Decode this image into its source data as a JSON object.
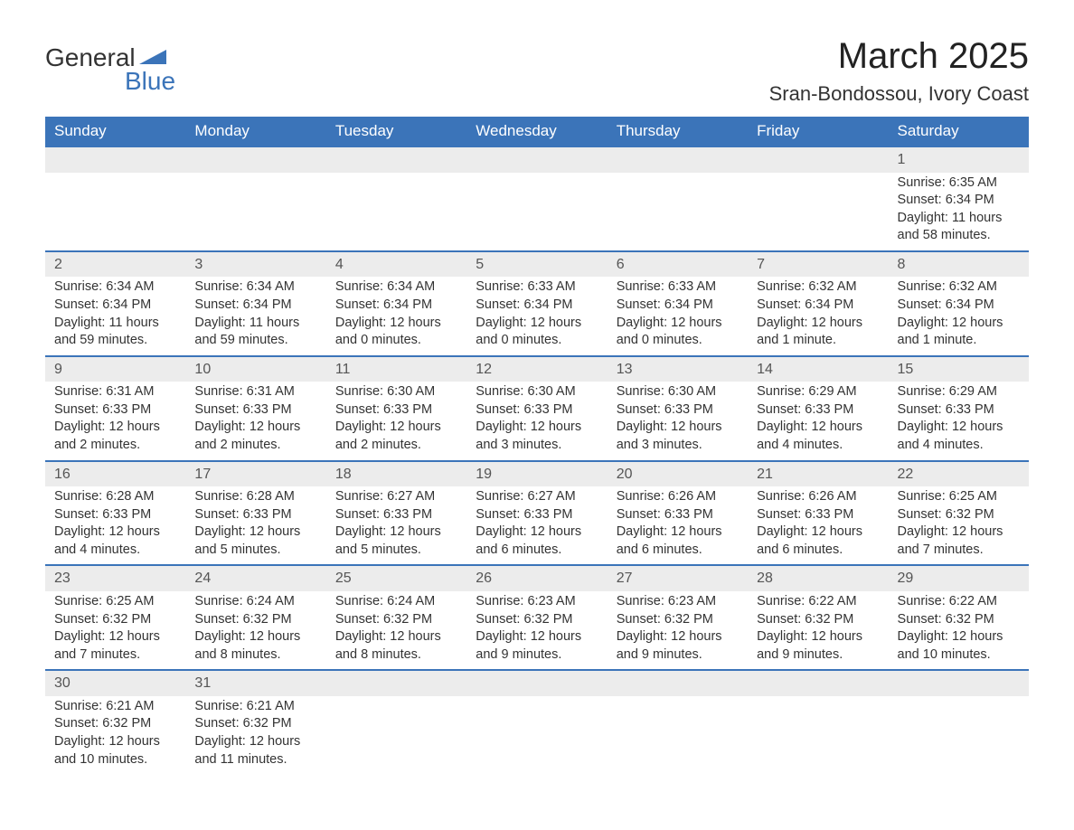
{
  "logo": {
    "text1": "General",
    "text2": "Blue",
    "triangle_color": "#3b74b9"
  },
  "title": "March 2025",
  "location": "Sran-Bondossou, Ivory Coast",
  "colors": {
    "header_bg": "#3b74b9",
    "header_fg": "#ffffff",
    "row_divider": "#3b74b9",
    "daynum_bg": "#ececec",
    "text": "#333333"
  },
  "weekdays": [
    "Sunday",
    "Monday",
    "Tuesday",
    "Wednesday",
    "Thursday",
    "Friday",
    "Saturday"
  ],
  "weeks": [
    [
      null,
      null,
      null,
      null,
      null,
      null,
      {
        "n": "1",
        "sr": "Sunrise: 6:35 AM",
        "ss": "Sunset: 6:34 PM",
        "dl": "Daylight: 11 hours and 58 minutes."
      }
    ],
    [
      {
        "n": "2",
        "sr": "Sunrise: 6:34 AM",
        "ss": "Sunset: 6:34 PM",
        "dl": "Daylight: 11 hours and 59 minutes."
      },
      {
        "n": "3",
        "sr": "Sunrise: 6:34 AM",
        "ss": "Sunset: 6:34 PM",
        "dl": "Daylight: 11 hours and 59 minutes."
      },
      {
        "n": "4",
        "sr": "Sunrise: 6:34 AM",
        "ss": "Sunset: 6:34 PM",
        "dl": "Daylight: 12 hours and 0 minutes."
      },
      {
        "n": "5",
        "sr": "Sunrise: 6:33 AM",
        "ss": "Sunset: 6:34 PM",
        "dl": "Daylight: 12 hours and 0 minutes."
      },
      {
        "n": "6",
        "sr": "Sunrise: 6:33 AM",
        "ss": "Sunset: 6:34 PM",
        "dl": "Daylight: 12 hours and 0 minutes."
      },
      {
        "n": "7",
        "sr": "Sunrise: 6:32 AM",
        "ss": "Sunset: 6:34 PM",
        "dl": "Daylight: 12 hours and 1 minute."
      },
      {
        "n": "8",
        "sr": "Sunrise: 6:32 AM",
        "ss": "Sunset: 6:34 PM",
        "dl": "Daylight: 12 hours and 1 minute."
      }
    ],
    [
      {
        "n": "9",
        "sr": "Sunrise: 6:31 AM",
        "ss": "Sunset: 6:33 PM",
        "dl": "Daylight: 12 hours and 2 minutes."
      },
      {
        "n": "10",
        "sr": "Sunrise: 6:31 AM",
        "ss": "Sunset: 6:33 PM",
        "dl": "Daylight: 12 hours and 2 minutes."
      },
      {
        "n": "11",
        "sr": "Sunrise: 6:30 AM",
        "ss": "Sunset: 6:33 PM",
        "dl": "Daylight: 12 hours and 2 minutes."
      },
      {
        "n": "12",
        "sr": "Sunrise: 6:30 AM",
        "ss": "Sunset: 6:33 PM",
        "dl": "Daylight: 12 hours and 3 minutes."
      },
      {
        "n": "13",
        "sr": "Sunrise: 6:30 AM",
        "ss": "Sunset: 6:33 PM",
        "dl": "Daylight: 12 hours and 3 minutes."
      },
      {
        "n": "14",
        "sr": "Sunrise: 6:29 AM",
        "ss": "Sunset: 6:33 PM",
        "dl": "Daylight: 12 hours and 4 minutes."
      },
      {
        "n": "15",
        "sr": "Sunrise: 6:29 AM",
        "ss": "Sunset: 6:33 PM",
        "dl": "Daylight: 12 hours and 4 minutes."
      }
    ],
    [
      {
        "n": "16",
        "sr": "Sunrise: 6:28 AM",
        "ss": "Sunset: 6:33 PM",
        "dl": "Daylight: 12 hours and 4 minutes."
      },
      {
        "n": "17",
        "sr": "Sunrise: 6:28 AM",
        "ss": "Sunset: 6:33 PM",
        "dl": "Daylight: 12 hours and 5 minutes."
      },
      {
        "n": "18",
        "sr": "Sunrise: 6:27 AM",
        "ss": "Sunset: 6:33 PM",
        "dl": "Daylight: 12 hours and 5 minutes."
      },
      {
        "n": "19",
        "sr": "Sunrise: 6:27 AM",
        "ss": "Sunset: 6:33 PM",
        "dl": "Daylight: 12 hours and 6 minutes."
      },
      {
        "n": "20",
        "sr": "Sunrise: 6:26 AM",
        "ss": "Sunset: 6:33 PM",
        "dl": "Daylight: 12 hours and 6 minutes."
      },
      {
        "n": "21",
        "sr": "Sunrise: 6:26 AM",
        "ss": "Sunset: 6:33 PM",
        "dl": "Daylight: 12 hours and 6 minutes."
      },
      {
        "n": "22",
        "sr": "Sunrise: 6:25 AM",
        "ss": "Sunset: 6:32 PM",
        "dl": "Daylight: 12 hours and 7 minutes."
      }
    ],
    [
      {
        "n": "23",
        "sr": "Sunrise: 6:25 AM",
        "ss": "Sunset: 6:32 PM",
        "dl": "Daylight: 12 hours and 7 minutes."
      },
      {
        "n": "24",
        "sr": "Sunrise: 6:24 AM",
        "ss": "Sunset: 6:32 PM",
        "dl": "Daylight: 12 hours and 8 minutes."
      },
      {
        "n": "25",
        "sr": "Sunrise: 6:24 AM",
        "ss": "Sunset: 6:32 PM",
        "dl": "Daylight: 12 hours and 8 minutes."
      },
      {
        "n": "26",
        "sr": "Sunrise: 6:23 AM",
        "ss": "Sunset: 6:32 PM",
        "dl": "Daylight: 12 hours and 9 minutes."
      },
      {
        "n": "27",
        "sr": "Sunrise: 6:23 AM",
        "ss": "Sunset: 6:32 PM",
        "dl": "Daylight: 12 hours and 9 minutes."
      },
      {
        "n": "28",
        "sr": "Sunrise: 6:22 AM",
        "ss": "Sunset: 6:32 PM",
        "dl": "Daylight: 12 hours and 9 minutes."
      },
      {
        "n": "29",
        "sr": "Sunrise: 6:22 AM",
        "ss": "Sunset: 6:32 PM",
        "dl": "Daylight: 12 hours and 10 minutes."
      }
    ],
    [
      {
        "n": "30",
        "sr": "Sunrise: 6:21 AM",
        "ss": "Sunset: 6:32 PM",
        "dl": "Daylight: 12 hours and 10 minutes."
      },
      {
        "n": "31",
        "sr": "Sunrise: 6:21 AM",
        "ss": "Sunset: 6:32 PM",
        "dl": "Daylight: 12 hours and 11 minutes."
      },
      null,
      null,
      null,
      null,
      null
    ]
  ]
}
